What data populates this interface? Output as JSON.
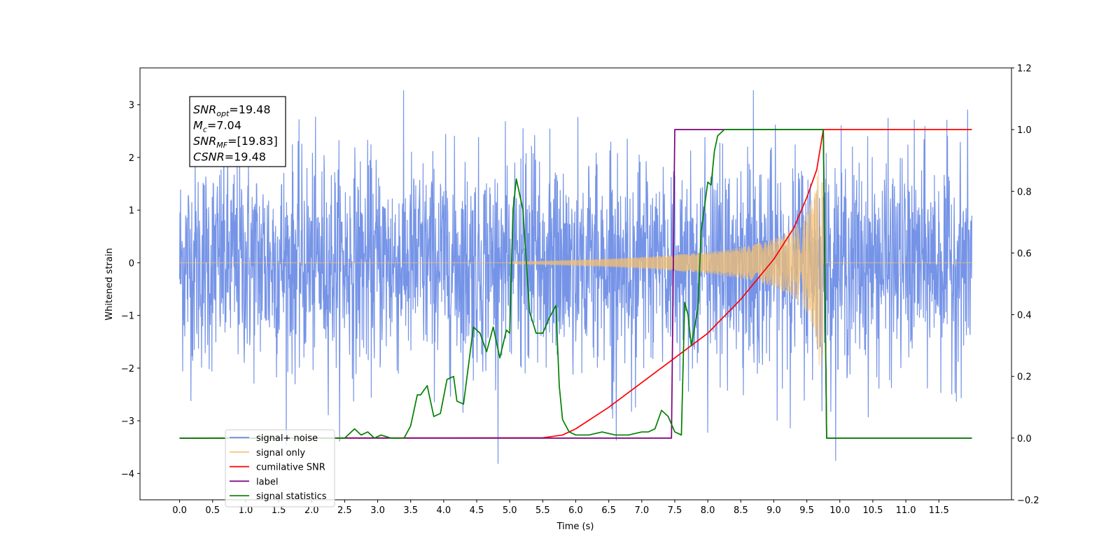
{
  "chart_data": {
    "type": "line",
    "xlabel": "Time (s)",
    "ylabel": "Whitened strain",
    "xlim": [
      -0.6,
      12.6
    ],
    "ylim": [
      -4.5,
      3.7
    ],
    "y2lim": [
      -0.2,
      1.2
    ],
    "x_ticks": [
      "0.0",
      "0.5",
      "1.0",
      "1.5",
      "2.0",
      "2.5",
      "3.0",
      "3.5",
      "4.0",
      "4.5",
      "5.0",
      "5.5",
      "6.0",
      "6.5",
      "7.0",
      "7.5",
      "8.0",
      "8.5",
      "9.0",
      "9.5",
      "10.0",
      "10.5",
      "11.0",
      "11.5"
    ],
    "y_ticks": [
      "−4",
      "−3",
      "−2",
      "−1",
      "0",
      "1",
      "2",
      "3"
    ],
    "y2_ticks": [
      "−0.2",
      "0.0",
      "0.2",
      "0.4",
      "0.6",
      "0.8",
      "1.0",
      "1.2"
    ],
    "grid": false,
    "legend_position": "lower-left",
    "annotation": {
      "lines": [
        {
          "label": "SNR",
          "sub": "opt",
          "value": "=19.48"
        },
        {
          "label": "M",
          "sub": "c",
          "value": "=7.04"
        },
        {
          "label": "SNR",
          "sub": "MF",
          "value": "=[19.83]"
        },
        {
          "label": "CSNR",
          "sub": "",
          "value": "=19.48"
        }
      ]
    },
    "series": [
      {
        "name": "signal+ noise",
        "color": "#6f8ee6",
        "axis": "left",
        "kind": "noise",
        "x_range": [
          0.0,
          12.0
        ],
        "noise_std": 1.0,
        "envelope_max": 3.35,
        "envelope_min": -3.9
      },
      {
        "name": "signal only",
        "color": "#f5c070",
        "axis": "left",
        "kind": "chirp",
        "x_range": [
          0.0,
          12.0
        ],
        "chirp_start": 5.0,
        "chirp_end": 9.75,
        "peak_amplitude": 2.0
      },
      {
        "name": "cumilative SNR",
        "color": "#ff0000",
        "axis": "right",
        "x": [
          0.0,
          5.5,
          5.8,
          6.0,
          6.5,
          7.0,
          7.5,
          8.0,
          8.5,
          9.0,
          9.3,
          9.5,
          9.65,
          9.75,
          9.76,
          12.0
        ],
        "y": [
          0.0,
          0.001,
          0.01,
          0.03,
          0.1,
          0.18,
          0.26,
          0.34,
          0.45,
          0.58,
          0.68,
          0.78,
          0.87,
          1.0,
          1.0,
          1.0
        ]
      },
      {
        "name": "label",
        "color": "#7b007b",
        "axis": "right",
        "x": [
          0.0,
          7.45,
          7.5,
          9.75,
          9.8,
          12.0
        ],
        "y": [
          0.0,
          0.0,
          1.0,
          1.0,
          0.0,
          0.0
        ]
      },
      {
        "name": "signal statistics",
        "color": "#008000",
        "axis": "right",
        "x": [
          0.0,
          2.5,
          2.65,
          2.75,
          2.85,
          2.95,
          3.05,
          3.2,
          3.4,
          3.5,
          3.6,
          3.65,
          3.75,
          3.85,
          3.95,
          4.05,
          4.15,
          4.2,
          4.3,
          4.45,
          4.55,
          4.65,
          4.75,
          4.85,
          4.95,
          5.0,
          5.05,
          5.1,
          5.2,
          5.3,
          5.4,
          5.5,
          5.6,
          5.7,
          5.75,
          5.8,
          5.9,
          6.0,
          6.2,
          6.4,
          6.6,
          6.8,
          7.0,
          7.1,
          7.2,
          7.3,
          7.4,
          7.5,
          7.6,
          7.65,
          7.7,
          7.75,
          7.85,
          7.9,
          8.0,
          8.05,
          8.1,
          8.15,
          8.25,
          8.5,
          9.0,
          9.5,
          9.7,
          9.75,
          9.8,
          12.0
        ],
        "y": [
          0.0,
          0.0,
          0.03,
          0.01,
          0.02,
          0.0,
          0.01,
          0.0,
          0.0,
          0.04,
          0.14,
          0.14,
          0.17,
          0.07,
          0.08,
          0.19,
          0.2,
          0.12,
          0.11,
          0.36,
          0.34,
          0.28,
          0.36,
          0.26,
          0.35,
          0.34,
          0.74,
          0.84,
          0.74,
          0.41,
          0.34,
          0.34,
          0.39,
          0.43,
          0.17,
          0.06,
          0.02,
          0.01,
          0.01,
          0.02,
          0.01,
          0.01,
          0.02,
          0.02,
          0.03,
          0.09,
          0.07,
          0.02,
          0.01,
          0.44,
          0.4,
          0.3,
          0.42,
          0.67,
          0.83,
          0.82,
          0.93,
          0.98,
          1.0,
          1.0,
          1.0,
          1.0,
          1.0,
          1.0,
          0.0,
          0.0
        ]
      }
    ]
  }
}
